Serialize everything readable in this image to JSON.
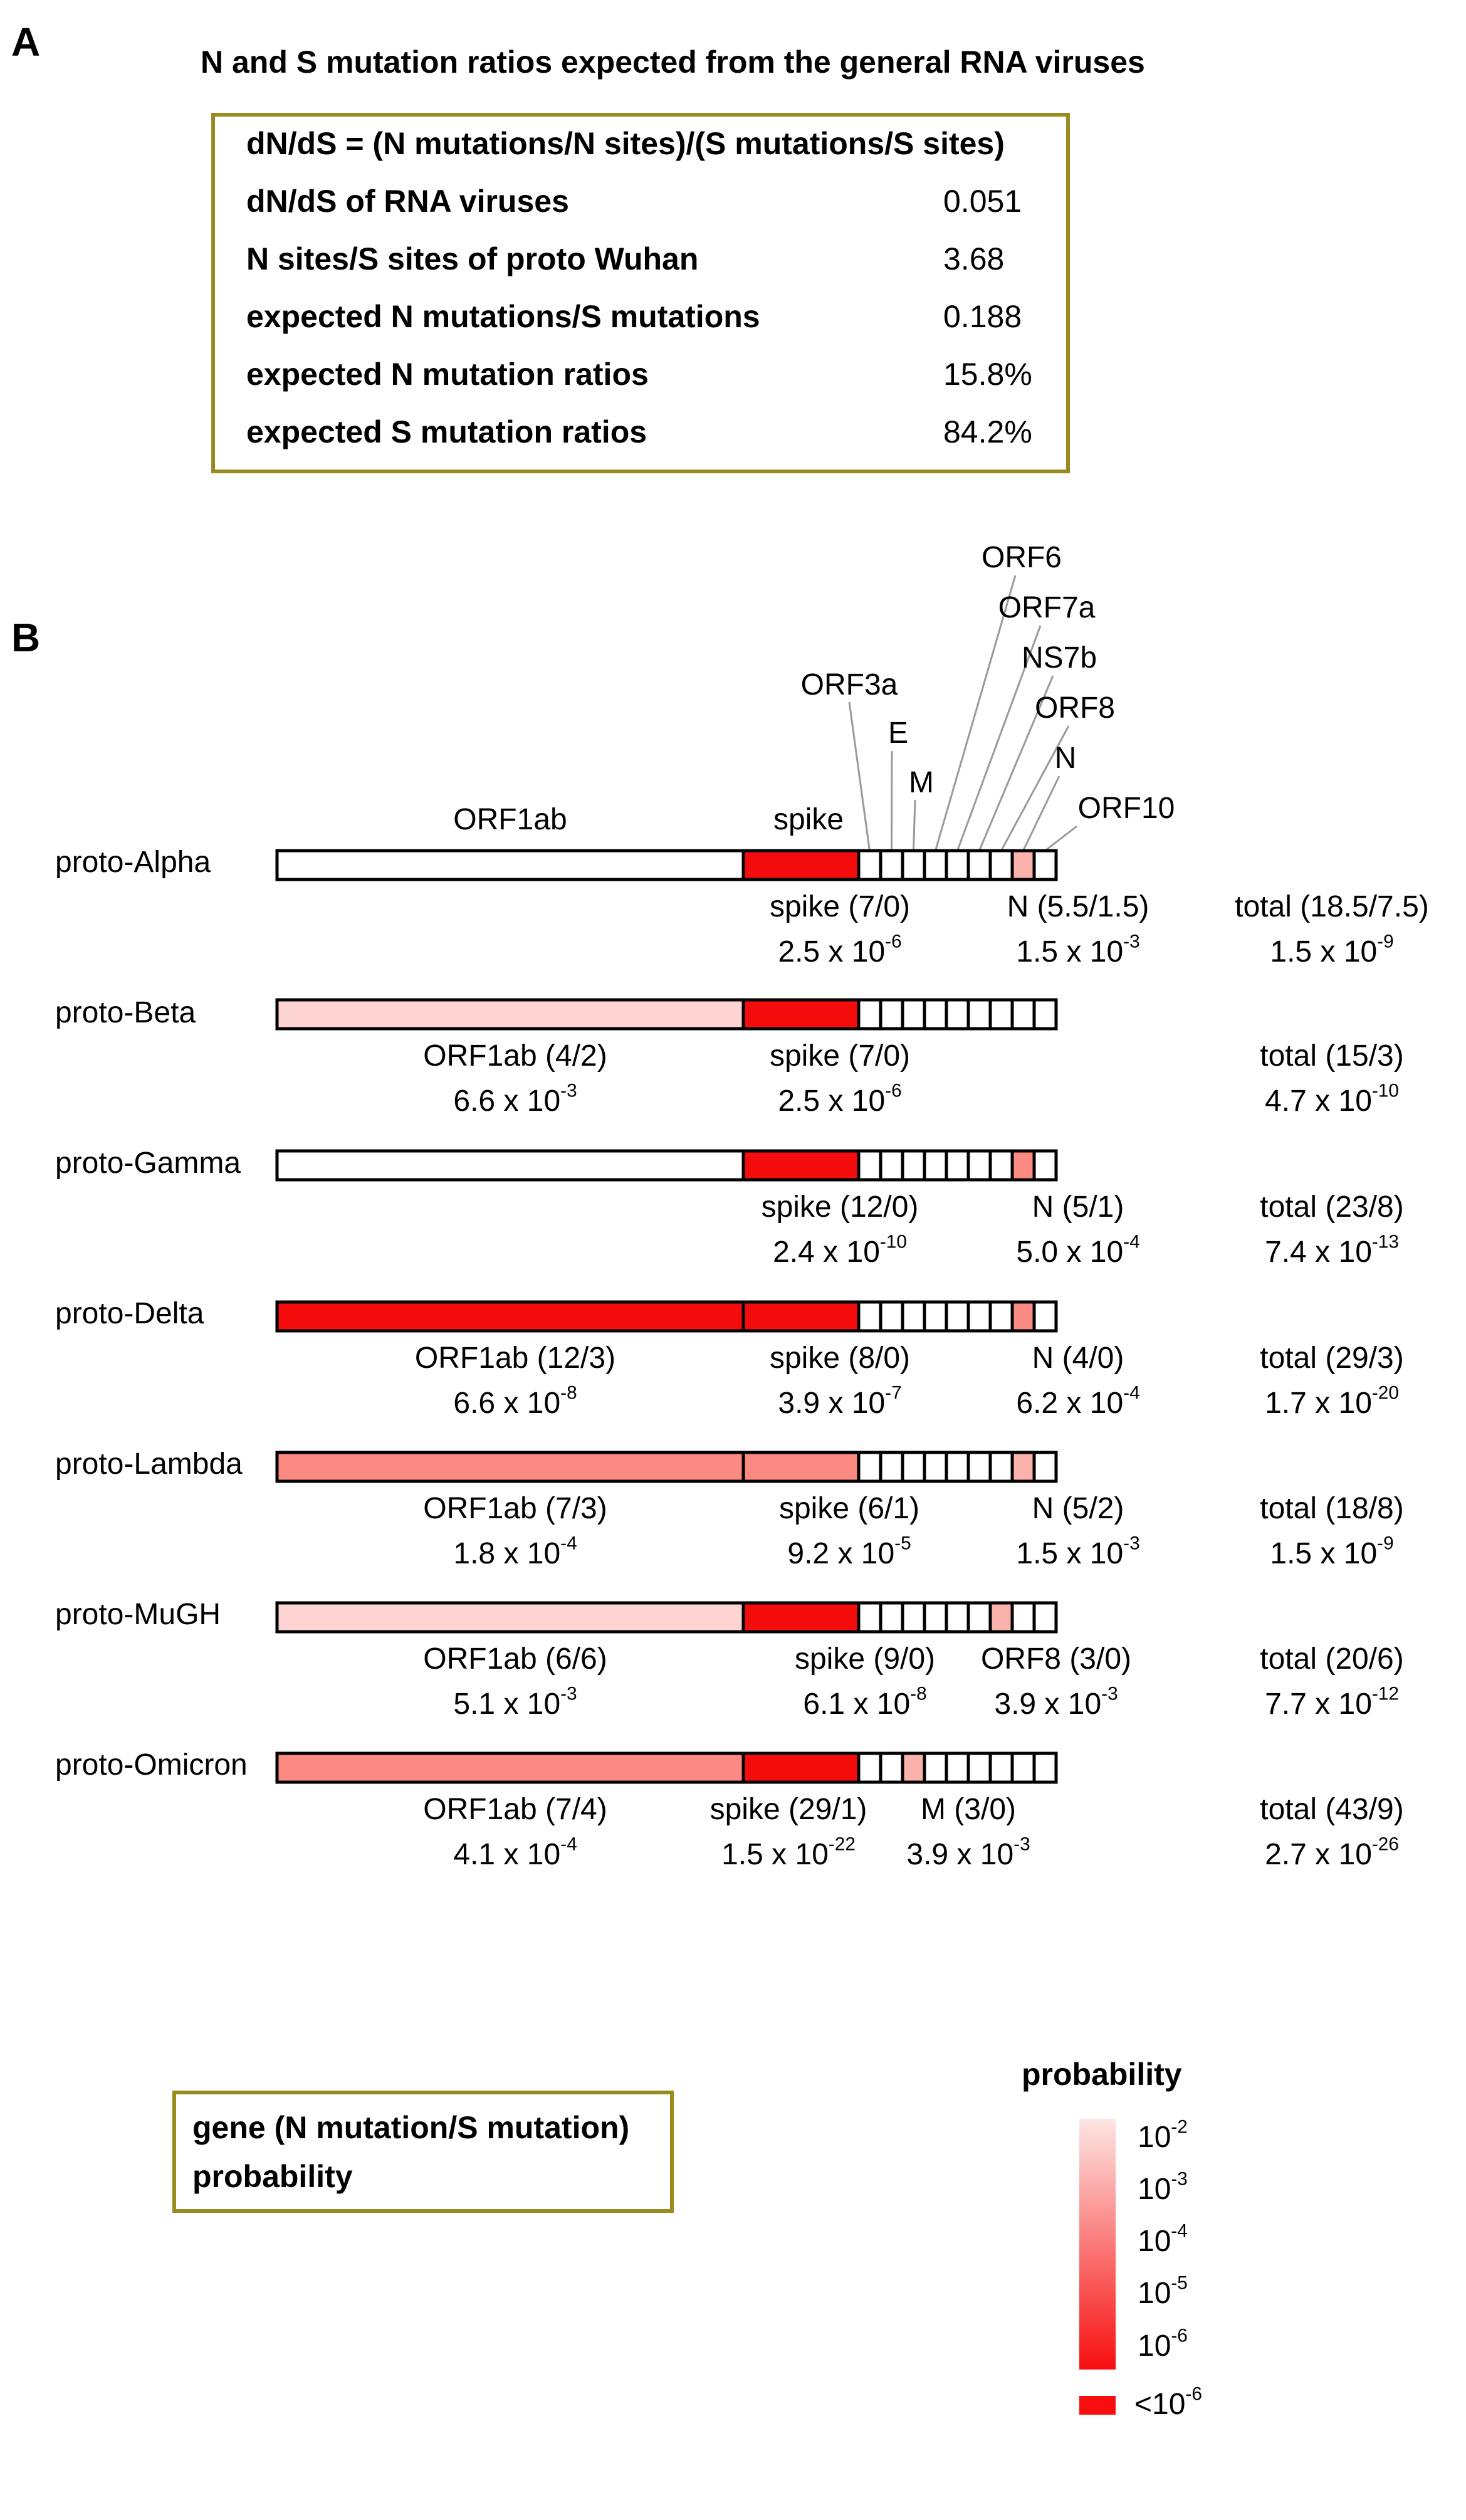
{
  "panel_a": {
    "letter": "A",
    "title": "N and S mutation ratios expected from the general RNA viruses",
    "header": "dN/dS = (N mutations/N sites)/(S mutations/S sites)",
    "rows": [
      {
        "label": "dN/dS of RNA viruses",
        "value": "0.051"
      },
      {
        "label": "N sites/S sites of proto Wuhan",
        "value": "3.68"
      },
      {
        "label": "expected N mutations/S mutations",
        "value": "0.188"
      },
      {
        "label": "expected N mutation ratios",
        "value": "15.8%"
      },
      {
        "label": "expected S mutation ratios",
        "value": "84.2%"
      }
    ]
  },
  "panel_b": {
    "letter": "B",
    "gene_labels": {
      "orf1ab": "ORF1ab",
      "spike": "spike",
      "orf3a": "ORF3a",
      "e": "E",
      "m": "M",
      "orf6": "ORF6",
      "orf7a": "ORF7a",
      "ns7b": "NS7b",
      "orf8": "ORF8",
      "n": "N",
      "orf10": "ORF10"
    },
    "colors": {
      "white": "#ffffff",
      "p2": "#fdd4d1",
      "p3": "#fcb2ac",
      "p4": "#fb8a82",
      "p5": "#fa5a50",
      "p6": "#f72c22",
      "p7": "#f50d0d",
      "border": "#000000"
    },
    "variants": [
      {
        "name": "proto-Alpha",
        "orf1ab": "white",
        "spike": "p7",
        "small": {
          "n": "p3"
        },
        "annotations": [
          {
            "gene_text": "spike (7/0)",
            "base": "2.5 x 10",
            "exp": "-6",
            "under": "spike"
          },
          {
            "gene_text": "N (5.5/1.5)",
            "base": "1.5 x 10",
            "exp": "-3",
            "under": "n"
          },
          {
            "gene_text": "total (18.5/7.5)",
            "base": "1.5 x 10",
            "exp": "-9",
            "under": "total"
          }
        ]
      },
      {
        "name": "proto-Beta",
        "orf1ab": "p2",
        "spike": "p7",
        "small": {},
        "annotations": [
          {
            "gene_text": "ORF1ab (4/2)",
            "base": "6.6 x 10",
            "exp": "-3",
            "under": "orf1ab"
          },
          {
            "gene_text": "spike (7/0)",
            "base": "2.5 x 10",
            "exp": "-6",
            "under": "spike"
          },
          {
            "gene_text": "total (15/3)",
            "base": "4.7 x 10",
            "exp": "-10",
            "under": "total"
          }
        ]
      },
      {
        "name": "proto-Gamma",
        "orf1ab": "white",
        "spike": "p7",
        "small": {
          "n": "p4"
        },
        "annotations": [
          {
            "gene_text": "spike (12/0)",
            "base": "2.4 x 10",
            "exp": "-10",
            "under": "spike"
          },
          {
            "gene_text": "N (5/1)",
            "base": "5.0 x 10",
            "exp": "-4",
            "under": "n"
          },
          {
            "gene_text": "total (23/8)",
            "base": "7.4 x 10",
            "exp": "-13",
            "under": "total"
          }
        ]
      },
      {
        "name": "proto-Delta",
        "orf1ab": "p7",
        "spike": "p7",
        "small": {
          "n": "p4"
        },
        "annotations": [
          {
            "gene_text": "ORF1ab (12/3)",
            "base": "6.6 x 10",
            "exp": "-8",
            "under": "orf1ab"
          },
          {
            "gene_text": "spike (8/0)",
            "base": "3.9 x 10",
            "exp": "-7",
            "under": "spike"
          },
          {
            "gene_text": "N (4/0)",
            "base": "6.2 x 10",
            "exp": "-4",
            "under": "n"
          },
          {
            "gene_text": "total (29/3)",
            "base": "1.7 x 10",
            "exp": "-20",
            "under": "total"
          }
        ]
      },
      {
        "name": "proto-Lambda",
        "orf1ab": "p4",
        "spike": "p4",
        "small": {
          "n": "p3"
        },
        "annotations": [
          {
            "gene_text": "ORF1ab (7/3)",
            "base": "1.8 x 10",
            "exp": "-4",
            "under": "orf1ab"
          },
          {
            "gene_text": "spike (6/1)",
            "base": "9.2 x 10",
            "exp": "-5",
            "under": "spike"
          },
          {
            "gene_text": "N (5/2)",
            "base": "1.5 x 10",
            "exp": "-3",
            "under": "n"
          },
          {
            "gene_text": "total (18/8)",
            "base": "1.5 x 10",
            "exp": "-9",
            "under": "total"
          }
        ]
      },
      {
        "name": "proto-MuGH",
        "orf1ab": "p2",
        "spike": "p7",
        "small": {
          "orf8": "p3"
        },
        "annotations": [
          {
            "gene_text": "ORF1ab (6/6)",
            "base": "5.1 x 10",
            "exp": "-3",
            "under": "orf1ab"
          },
          {
            "gene_text": "spike (9/0)",
            "base": "6.1 x 10",
            "exp": "-8",
            "under": "spike"
          },
          {
            "gene_text": "ORF8 (3/0)",
            "base": "3.9 x 10",
            "exp": "-3",
            "under": "orf8"
          },
          {
            "gene_text": "total (20/6)",
            "base": "7.7 x 10",
            "exp": "-12",
            "under": "total"
          }
        ]
      },
      {
        "name": "proto-Omicron",
        "orf1ab": "p4",
        "spike": "p7",
        "small": {
          "m": "p3"
        },
        "annotations": [
          {
            "gene_text": "ORF1ab (7/4)",
            "base": "4.1 x 10",
            "exp": "-4",
            "under": "orf1ab"
          },
          {
            "gene_text": "spike (29/1)",
            "base": "1.5 x 10",
            "exp": "-22",
            "under": "spike"
          },
          {
            "gene_text": "M (3/0)",
            "base": "3.9 x 10",
            "exp": "-3",
            "under": "m"
          },
          {
            "gene_text": "total (43/9)",
            "base": "2.7 x 10",
            "exp": "-26",
            "under": "total"
          }
        ]
      }
    ]
  },
  "key": {
    "line1": "gene (N mutation/S mutation)",
    "line2": "probability"
  },
  "legend": {
    "title": "probability",
    "ticks": [
      {
        "base": "10",
        "exp": "-2"
      },
      {
        "base": "10",
        "exp": "-3"
      },
      {
        "base": "10",
        "exp": "-4"
      },
      {
        "base": "10",
        "exp": "-5"
      },
      {
        "base": "10",
        "exp": "-6"
      }
    ],
    "below": {
      "prefix": "<10",
      "exp": "-6"
    },
    "gradient_top": "#fde6e4",
    "gradient_bottom": "#f70f0f",
    "below_color": "#f70f0f"
  }
}
